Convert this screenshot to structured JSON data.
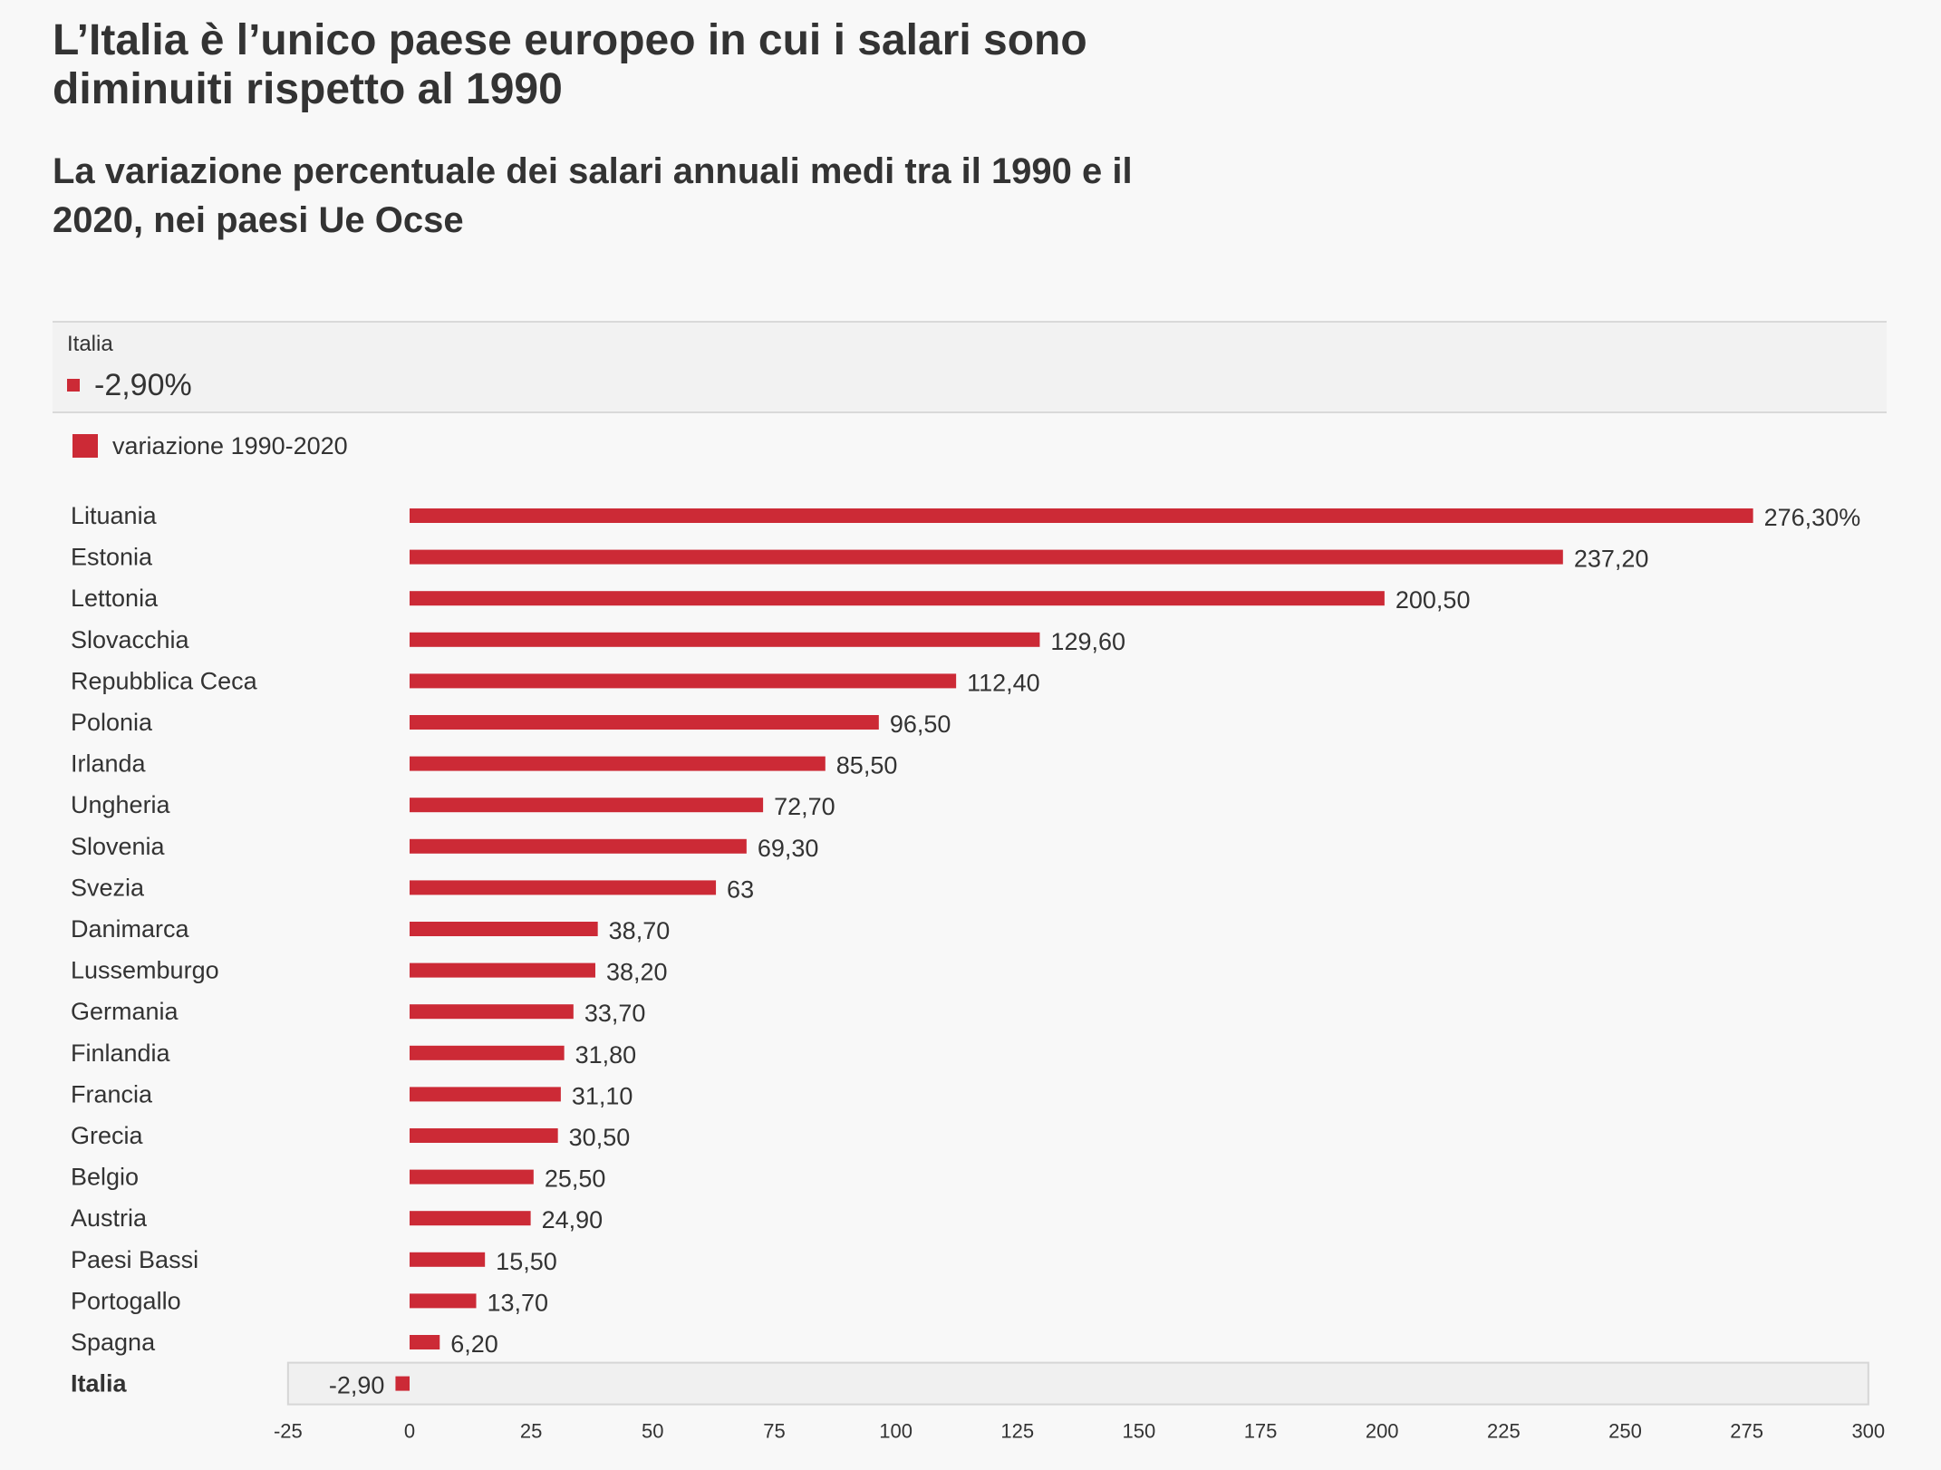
{
  "header": {
    "title": "L’Italia è l’unico paese europeo in cui i salari sono diminuiti rispetto al 1990",
    "subtitle": "La variazione percentuale dei salari annuali medi tra il 1990 e il 2020, nei paesi Ue Ocse"
  },
  "tooltip": {
    "label": "Italia",
    "value": "-2,90%"
  },
  "colors": {
    "bar": "#cc2a36",
    "highlight_bg": "#f0f0f0",
    "highlight_border": "#d6d6d6"
  },
  "chart_data": {
    "type": "bar",
    "orientation": "horizontal",
    "title": "",
    "xlabel": "",
    "ylabel": "",
    "xlim": [
      -25,
      300
    ],
    "grid": false,
    "highlight": "Italia",
    "series": [
      {
        "name": "variazione 1990-2020",
        "values": [
          276.3,
          237.2,
          200.5,
          129.6,
          112.4,
          96.5,
          85.5,
          72.7,
          69.3,
          63,
          38.7,
          38.2,
          33.7,
          31.8,
          31.1,
          30.5,
          25.5,
          24.9,
          15.5,
          13.7,
          6.2,
          -2.9
        ]
      }
    ],
    "categories": [
      "Lituania",
      "Estonia",
      "Lettonia",
      "Slovacchia",
      "Repubblica Ceca",
      "Polonia",
      "Irlanda",
      "Ungheria",
      "Slovenia",
      "Svezia",
      "Danimarca",
      "Lussemburgo",
      "Germania",
      "Finlandia",
      "Francia",
      "Grecia",
      "Belgio",
      "Austria",
      "Paesi Bassi",
      "Portogallo",
      "Spagna",
      "Italia"
    ],
    "value_labels": [
      "276,30%",
      "237,20",
      "200,50",
      "129,60",
      "112,40",
      "96,50",
      "85,50",
      "72,70",
      "69,30",
      "63",
      "38,70",
      "38,20",
      "33,70",
      "31,80",
      "31,10",
      "30,50",
      "25,50",
      "24,90",
      "15,50",
      "13,70",
      "6,20",
      "-2,90"
    ],
    "x_ticks": [
      -25,
      0,
      25,
      50,
      75,
      100,
      125,
      150,
      175,
      200,
      225,
      250,
      275,
      300
    ]
  }
}
